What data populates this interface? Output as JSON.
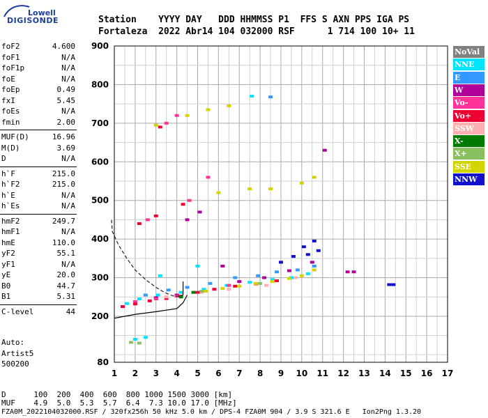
{
  "logo": {
    "line1": "Lowell",
    "line2": "DIGISONDE"
  },
  "header": {
    "line1": "Station    YYYY DAY   DDD HHMMSS P1  FFS S AXN PPS IGA PS",
    "line2": "Fortaleza  2022 Abr14 104 032000 RSF      1 714 100 10+ 11"
  },
  "params": [
    {
      "name": "foF2",
      "value": "4.600"
    },
    {
      "name": "foF1",
      "value": "N/A"
    },
    {
      "name": "foF1p",
      "value": "N/A"
    },
    {
      "name": "foE",
      "value": "N/A"
    },
    {
      "name": "foEp",
      "value": "0.49"
    },
    {
      "name": "fxI",
      "value": "5.45"
    },
    {
      "name": "foEs",
      "value": "N/A"
    },
    {
      "name": "fmin",
      "value": "2.00"
    },
    {
      "name": "MUF(D)",
      "value": "16.96"
    },
    {
      "name": "M(D)",
      "value": "3.69"
    },
    {
      "name": "D",
      "value": "N/A"
    },
    {
      "name": "h`F",
      "value": "215.0"
    },
    {
      "name": "h`F2",
      "value": "215.0"
    },
    {
      "name": "h`E",
      "value": "N/A"
    },
    {
      "name": "h`Es",
      "value": "N/A"
    },
    {
      "name": "hmF2",
      "value": "249.7"
    },
    {
      "name": "hmF1",
      "value": "N/A"
    },
    {
      "name": "hmE",
      "value": "110.0"
    },
    {
      "name": "yF2",
      "value": "55.1"
    },
    {
      "name": "yF1",
      "value": "N/A"
    },
    {
      "name": "yE",
      "value": "20.0"
    },
    {
      "name": "B0",
      "value": "44.7"
    },
    {
      "name": "B1",
      "value": "5.31"
    },
    {
      "name": "C-level",
      "value": "44"
    }
  ],
  "auto": {
    "label": "Auto:",
    "name": "Artist5",
    "version": "500200"
  },
  "footer": {
    "d_row": "D      100  200  400  600  800 1000 1500 3000 [km]",
    "muf_row": "MUF    4.9  5.0  5.3  5.7  6.4  7.3 10.0 17.0 [MHz]",
    "info": "FZA0M_2022104032000.RSF / 320fx256h 50 kHz 5.0 km / DPS-4 FZA0M 904 / 3.9 S 321.6 E   Ion2Png 1.3.20"
  },
  "legend": [
    {
      "label": "NoVal",
      "color": "#808080",
      "text_color": "#ffffff"
    },
    {
      "label": "NNE",
      "color": "#00e5ff",
      "text_color": "#ffffff"
    },
    {
      "label": "E",
      "color": "#3399ff",
      "text_color": "#ffffff"
    },
    {
      "label": "W",
      "color": "#b0009a",
      "text_color": "#ffffff"
    },
    {
      "label": "Vo-",
      "color": "#ff3399",
      "text_color": "#ffffff"
    },
    {
      "label": "Vo+",
      "color": "#ee0033",
      "text_color": "#ffffff"
    },
    {
      "label": "SSW",
      "color": "#ffb0b0",
      "text_color": "#ffffff"
    },
    {
      "label": "X-",
      "color": "#007a00",
      "text_color": "#ffffff"
    },
    {
      "label": "X+",
      "color": "#88c060",
      "text_color": "#ffffff"
    },
    {
      "label": "SSE",
      "color": "#d4d400",
      "text_color": "#ffffff"
    },
    {
      "label": "NNW",
      "color": "#1111cc",
      "text_color": "#ffffff"
    }
  ],
  "chart_data": {
    "type": "scatter",
    "xlim": [
      1,
      17
    ],
    "ylim": [
      80,
      900
    ],
    "x_ticks": [
      "1",
      "2",
      "3",
      "4",
      "5",
      "6",
      "7",
      "8",
      "9",
      "10",
      "11",
      "12",
      "13",
      "14",
      "15",
      "16",
      "17"
    ],
    "y_ticks": [
      "80",
      "200",
      "300",
      "400",
      "500",
      "600",
      "700",
      "800",
      "900"
    ],
    "grid": true,
    "legend_position": "right",
    "series": [
      {
        "name": "NNE",
        "color": "#00e5ff",
        "points": [
          [
            1.6,
            233
          ],
          [
            2.2,
            245
          ],
          [
            3.1,
            255
          ],
          [
            4.2,
            262
          ],
          [
            5.3,
            270
          ],
          [
            6.4,
            280
          ],
          [
            7.5,
            288
          ],
          [
            8.6,
            295
          ],
          [
            9.5,
            300
          ],
          [
            10.3,
            310
          ],
          [
            2.0,
            140
          ],
          [
            2.5,
            145
          ],
          [
            3.2,
            305
          ],
          [
            5.0,
            330
          ],
          [
            7.6,
            770
          ]
        ]
      },
      {
        "name": "E",
        "color": "#3399ff",
        "points": [
          [
            2.5,
            255
          ],
          [
            3.6,
            268
          ],
          [
            4.5,
            275
          ],
          [
            5.6,
            285
          ],
          [
            6.8,
            300
          ],
          [
            7.9,
            305
          ],
          [
            8.8,
            315
          ],
          [
            9.8,
            320
          ],
          [
            10.6,
            330
          ],
          [
            8.5,
            768
          ]
        ]
      },
      {
        "name": "W",
        "color": "#b0009a",
        "points": [
          [
            3.0,
            248
          ],
          [
            4.0,
            255
          ],
          [
            4.5,
            450
          ],
          [
            5.1,
            470
          ],
          [
            6.2,
            330
          ],
          [
            7.0,
            290
          ],
          [
            8.2,
            300
          ],
          [
            9.4,
            318
          ],
          [
            10.5,
            340
          ],
          [
            11.1,
            630
          ],
          [
            12.2,
            315
          ],
          [
            12.5,
            315
          ]
        ]
      },
      {
        "name": "Vo-",
        "color": "#ff3399",
        "points": [
          [
            2.0,
            238
          ],
          [
            3.0,
            245
          ],
          [
            4.0,
            252
          ],
          [
            4.6,
            500
          ],
          [
            5.5,
            560
          ],
          [
            6.5,
            280
          ],
          [
            3.5,
            700
          ],
          [
            4.0,
            720
          ],
          [
            2.6,
            450
          ]
        ]
      },
      {
        "name": "Vo+",
        "color": "#ee0033",
        "points": [
          [
            1.4,
            225
          ],
          [
            2.0,
            232
          ],
          [
            2.7,
            240
          ],
          [
            3.5,
            246
          ],
          [
            4.2,
            252
          ],
          [
            5.0,
            262
          ],
          [
            5.8,
            270
          ],
          [
            6.8,
            278
          ],
          [
            7.8,
            284
          ],
          [
            8.8,
            292
          ],
          [
            2.2,
            440
          ],
          [
            3.0,
            460
          ],
          [
            4.3,
            490
          ],
          [
            3.2,
            690
          ]
        ]
      },
      {
        "name": "SSW",
        "color": "#ffb0b0",
        "points": [
          [
            3.5,
            250
          ],
          [
            5.2,
            262
          ],
          [
            6.5,
            270
          ],
          [
            8.3,
            280
          ],
          [
            9.7,
            300
          ]
        ]
      },
      {
        "name": "X-",
        "color": "#007a00",
        "points": [
          [
            4.2,
            250
          ],
          [
            4.8,
            262
          ]
        ]
      },
      {
        "name": "X+",
        "color": "#88c060",
        "points": [
          [
            1.8,
            132
          ],
          [
            2.2,
            130
          ],
          [
            5.2,
            265
          ],
          [
            8.0,
            285
          ]
        ]
      },
      {
        "name": "SSE",
        "color": "#d4d400",
        "points": [
          [
            5.4,
            265
          ],
          [
            6.2,
            272
          ],
          [
            7.0,
            278
          ],
          [
            7.8,
            285
          ],
          [
            8.6,
            290
          ],
          [
            9.4,
            298
          ],
          [
            10.0,
            305
          ],
          [
            10.6,
            320
          ],
          [
            6.0,
            520
          ],
          [
            7.5,
            530
          ],
          [
            8.5,
            530
          ],
          [
            10.0,
            545
          ],
          [
            10.6,
            560
          ],
          [
            3.0,
            695
          ],
          [
            4.5,
            720
          ],
          [
            5.5,
            735
          ],
          [
            6.5,
            745
          ]
        ]
      },
      {
        "name": "NNW",
        "color": "#1111cc",
        "points": [
          [
            9.0,
            340
          ],
          [
            9.6,
            355
          ],
          [
            10.1,
            380
          ],
          [
            10.6,
            395
          ],
          [
            10.8,
            370
          ],
          [
            10.3,
            360
          ],
          [
            14.2,
            282
          ],
          [
            14.4,
            282
          ]
        ]
      }
    ],
    "profile": {
      "x": [
        0.7,
        0.9,
        1.2,
        1.6,
        2.0,
        2.5,
        3.0,
        3.4,
        3.7,
        3.9,
        4.1,
        4.3
      ],
      "y": [
        450,
        420,
        385,
        350,
        320,
        295,
        275,
        262,
        255,
        252,
        252,
        255
      ]
    },
    "trace_line": {
      "x": [
        1.0,
        2.0,
        3.0,
        4.0,
        4.3,
        4.5
      ],
      "y": [
        195,
        205,
        212,
        220,
        235,
        255
      ]
    }
  }
}
